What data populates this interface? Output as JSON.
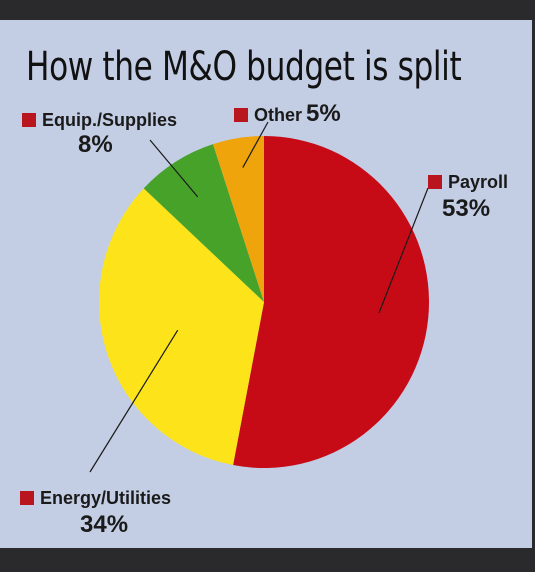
{
  "title": "How the M&O budget is split",
  "chart_data": {
    "type": "pie",
    "title": "How the M&O budget is split",
    "slices": [
      {
        "label": "Payroll",
        "value": 53,
        "value_label": "53%",
        "color": "#c60b17"
      },
      {
        "label": "Energy/Utilities",
        "value": 34,
        "value_label": "34%",
        "color": "#fce31a"
      },
      {
        "label": "Equip./Supplies",
        "value": 8,
        "value_label": "8%",
        "color": "#47a22a"
      },
      {
        "label": "Other",
        "value": 5,
        "value_label": "5%",
        "color": "#f0a40c"
      }
    ],
    "legend_marker_color": "#b8151e"
  }
}
